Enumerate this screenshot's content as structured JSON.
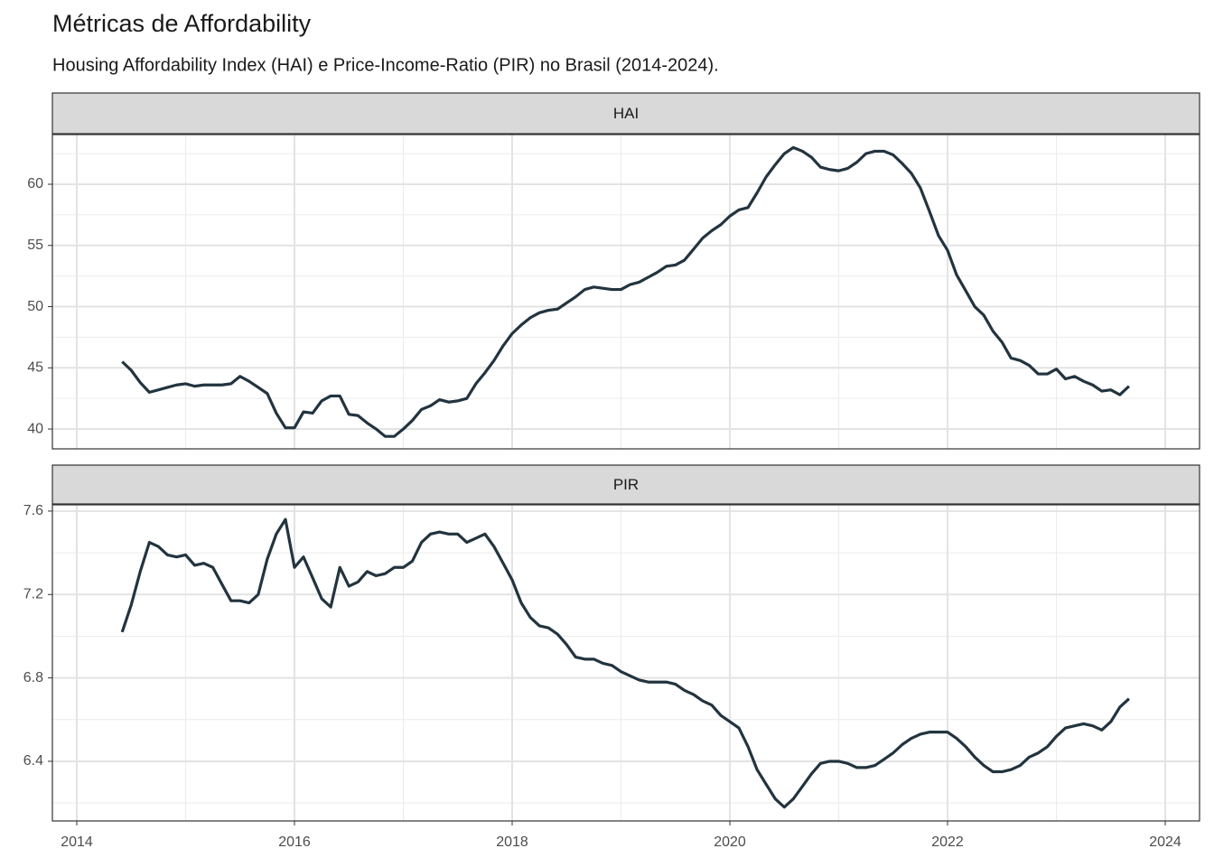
{
  "title": "Métricas de Affordability",
  "subtitle": "Housing Affordability Index (HAI) e Price-Income-Ratio (PIR) no Brasil (2014-2024).",
  "chart_data": [
    {
      "type": "line",
      "title": "HAI",
      "grid": true,
      "x": [
        2014.417,
        2014.5,
        2014.583,
        2014.667,
        2014.75,
        2014.833,
        2014.917,
        2015.0,
        2015.083,
        2015.167,
        2015.25,
        2015.333,
        2015.417,
        2015.5,
        2015.583,
        2015.667,
        2015.75,
        2015.833,
        2015.917,
        2016.0,
        2016.083,
        2016.167,
        2016.25,
        2016.333,
        2016.417,
        2016.5,
        2016.583,
        2016.667,
        2016.75,
        2016.833,
        2016.917,
        2017.0,
        2017.083,
        2017.167,
        2017.25,
        2017.333,
        2017.417,
        2017.5,
        2017.583,
        2017.667,
        2017.75,
        2017.833,
        2017.917,
        2018.0,
        2018.083,
        2018.167,
        2018.25,
        2018.333,
        2018.417,
        2018.5,
        2018.583,
        2018.667,
        2018.75,
        2018.833,
        2018.917,
        2019.0,
        2019.083,
        2019.167,
        2019.25,
        2019.333,
        2019.417,
        2019.5,
        2019.583,
        2019.667,
        2019.75,
        2019.833,
        2019.917,
        2020.0,
        2020.083,
        2020.167,
        2020.25,
        2020.333,
        2020.417,
        2020.5,
        2020.583,
        2020.667,
        2020.75,
        2020.833,
        2020.917,
        2021.0,
        2021.083,
        2021.167,
        2021.25,
        2021.333,
        2021.417,
        2021.5,
        2021.583,
        2021.667,
        2021.75,
        2021.833,
        2021.917,
        2022.0,
        2022.083,
        2022.167,
        2022.25,
        2022.333,
        2022.417,
        2022.5,
        2022.583,
        2022.667,
        2022.75,
        2022.833,
        2022.917,
        2023.0,
        2023.083,
        2023.167,
        2023.25,
        2023.333,
        2023.417,
        2023.5,
        2023.583,
        2023.667
      ],
      "series": [
        {
          "color": "#22343f",
          "values": [
            45.5,
            44.8,
            43.8,
            43.0,
            43.2,
            43.4,
            43.6,
            43.7,
            43.5,
            43.6,
            43.6,
            43.6,
            43.7,
            44.3,
            43.9,
            43.4,
            42.9,
            41.3,
            40.1,
            40.1,
            41.4,
            41.3,
            42.3,
            42.7,
            42.7,
            41.2,
            41.1,
            40.5,
            40.0,
            39.4,
            39.4,
            40.0,
            40.7,
            41.6,
            41.9,
            42.4,
            42.2,
            42.3,
            42.5,
            43.7,
            44.6,
            45.6,
            46.8,
            47.8,
            48.5,
            49.1,
            49.5,
            49.7,
            49.8,
            50.3,
            50.8,
            51.4,
            51.6,
            51.5,
            51.4,
            51.4,
            51.8,
            52.0,
            52.4,
            52.8,
            53.3,
            53.4,
            53.8,
            54.7,
            55.6,
            56.2,
            56.7,
            57.4,
            57.9,
            58.1,
            59.3,
            60.6,
            61.6,
            62.5,
            63.0,
            62.7,
            62.2,
            61.4,
            61.2,
            61.1,
            61.3,
            61.8,
            62.5,
            62.7,
            62.7,
            62.4,
            61.7,
            60.9,
            59.7,
            57.8,
            55.8,
            54.6,
            52.6,
            51.3,
            50.0,
            49.3,
            48.0,
            47.1,
            45.8,
            45.6,
            45.2,
            44.5,
            44.5,
            44.9,
            44.1,
            44.3,
            43.9,
            43.6,
            43.1,
            43.2,
            42.8,
            43.5
          ]
        }
      ],
      "xlim": [
        2013.776,
        2024.315
      ],
      "xticks": [
        2014,
        2016,
        2018,
        2020,
        2022,
        2024
      ],
      "ylim": [
        38.38,
        64.06
      ],
      "yticks": [
        40,
        45,
        50,
        55,
        60
      ]
    },
    {
      "type": "line",
      "title": "PIR",
      "grid": true,
      "x": [
        2014.417,
        2014.5,
        2014.583,
        2014.667,
        2014.75,
        2014.833,
        2014.917,
        2015.0,
        2015.083,
        2015.167,
        2015.25,
        2015.333,
        2015.417,
        2015.5,
        2015.583,
        2015.667,
        2015.75,
        2015.833,
        2015.917,
        2016.0,
        2016.083,
        2016.167,
        2016.25,
        2016.333,
        2016.417,
        2016.5,
        2016.583,
        2016.667,
        2016.75,
        2016.833,
        2016.917,
        2017.0,
        2017.083,
        2017.167,
        2017.25,
        2017.333,
        2017.417,
        2017.5,
        2017.583,
        2017.667,
        2017.75,
        2017.833,
        2017.917,
        2018.0,
        2018.083,
        2018.167,
        2018.25,
        2018.333,
        2018.417,
        2018.5,
        2018.583,
        2018.667,
        2018.75,
        2018.833,
        2018.917,
        2019.0,
        2019.083,
        2019.167,
        2019.25,
        2019.333,
        2019.417,
        2019.5,
        2019.583,
        2019.667,
        2019.75,
        2019.833,
        2019.917,
        2020.0,
        2020.083,
        2020.167,
        2020.25,
        2020.333,
        2020.417,
        2020.5,
        2020.583,
        2020.667,
        2020.75,
        2020.833,
        2020.917,
        2021.0,
        2021.083,
        2021.167,
        2021.25,
        2021.333,
        2021.417,
        2021.5,
        2021.583,
        2021.667,
        2021.75,
        2021.833,
        2021.917,
        2022.0,
        2022.083,
        2022.167,
        2022.25,
        2022.333,
        2022.417,
        2022.5,
        2022.583,
        2022.667,
        2022.75,
        2022.833,
        2022.917,
        2023.0,
        2023.083,
        2023.167,
        2023.25,
        2023.333,
        2023.417,
        2023.5,
        2023.583,
        2023.667
      ],
      "series": [
        {
          "color": "#22343f",
          "values": [
            7.02,
            7.15,
            7.31,
            7.45,
            7.43,
            7.39,
            7.38,
            7.39,
            7.34,
            7.35,
            7.33,
            7.25,
            7.17,
            7.17,
            7.16,
            7.2,
            7.37,
            7.49,
            7.56,
            7.33,
            7.38,
            7.28,
            7.18,
            7.14,
            7.33,
            7.24,
            7.26,
            7.31,
            7.29,
            7.3,
            7.33,
            7.33,
            7.36,
            7.45,
            7.49,
            7.5,
            7.49,
            7.49,
            7.45,
            7.47,
            7.49,
            7.43,
            7.35,
            7.27,
            7.16,
            7.09,
            7.05,
            7.04,
            7.01,
            6.96,
            6.9,
            6.89,
            6.89,
            6.87,
            6.86,
            6.83,
            6.81,
            6.79,
            6.78,
            6.78,
            6.78,
            6.77,
            6.74,
            6.72,
            6.69,
            6.67,
            6.62,
            6.59,
            6.56,
            6.47,
            6.36,
            6.29,
            6.22,
            6.18,
            6.22,
            6.28,
            6.34,
            6.39,
            6.4,
            6.4,
            6.39,
            6.37,
            6.37,
            6.38,
            6.41,
            6.44,
            6.48,
            6.51,
            6.53,
            6.54,
            6.54,
            6.54,
            6.51,
            6.47,
            6.42,
            6.38,
            6.35,
            6.35,
            6.36,
            6.38,
            6.42,
            6.44,
            6.47,
            6.52,
            6.56,
            6.57,
            6.58,
            6.57,
            6.55,
            6.59,
            6.66,
            6.7
          ]
        }
      ],
      "xlim": [
        2013.776,
        2024.315
      ],
      "xticks": [
        2014,
        2016,
        2018,
        2020,
        2022,
        2024
      ],
      "ylim": [
        6.114,
        7.63
      ],
      "yticks": [
        6.4,
        6.8,
        7.2,
        7.6
      ]
    }
  ]
}
